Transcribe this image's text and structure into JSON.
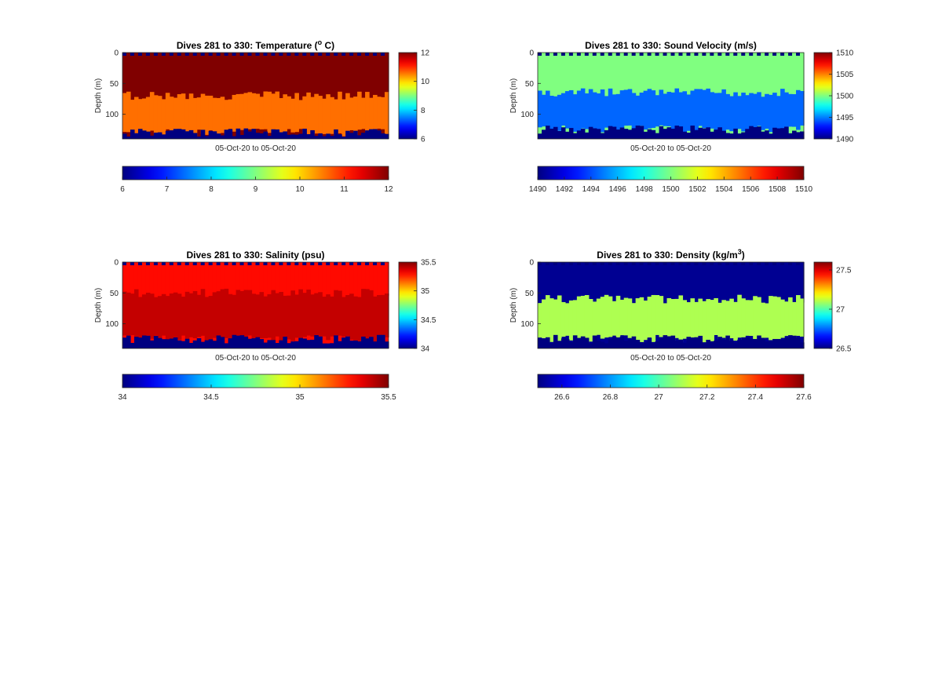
{
  "chart_data": [
    {
      "type": "heatmap",
      "title": "Dives 281 to 330: Temperature (",
      "title_sup": "o",
      "title_end": " C)",
      "xlabel": "05-Oct-20 to 05-Oct-20",
      "ylabel": "Depth (m)",
      "ylim": [
        0,
        140
      ],
      "yticks": [
        "0",
        "50",
        "100"
      ],
      "clim": [
        6,
        12
      ],
      "colorbar_ticks": [
        "6",
        "8",
        "10",
        "12"
      ],
      "hcolorbar_ticks": [
        "6",
        "7",
        "8",
        "9",
        "10",
        "11",
        "12"
      ],
      "colormap": "jet",
      "layers": [
        {
          "depth_range": [
            0,
            70
          ],
          "value": 12.3
        },
        {
          "depth_range": [
            70,
            130
          ],
          "value": 10.6
        },
        {
          "depth_range": [
            130,
            140
          ],
          "value": 6.0
        }
      ]
    },
    {
      "type": "heatmap",
      "title": "Dives 281 to 330: Sound Velocity (m/s)",
      "xlabel": "05-Oct-20 to 05-Oct-20",
      "ylabel": "Depth (m)",
      "ylim": [
        0,
        140
      ],
      "yticks": [
        "0",
        "50",
        "100"
      ],
      "clim": [
        1490,
        1510
      ],
      "colorbar_ticks": [
        "1490",
        "1495",
        "1500",
        "1505",
        "1510"
      ],
      "hcolorbar_ticks": [
        "1490",
        "1492",
        "1494",
        "1496",
        "1498",
        "1500",
        "1502",
        "1504",
        "1506",
        "1508",
        "1510"
      ],
      "colormap": "jet",
      "layers": [
        {
          "depth_range": [
            0,
            65
          ],
          "value": 1500
        },
        {
          "depth_range": [
            65,
            125
          ],
          "value": 1494.5
        },
        {
          "depth_range": [
            125,
            140
          ],
          "value": 1490
        }
      ]
    },
    {
      "type": "heatmap",
      "title": "Dives 281 to 330: Salinity (psu)",
      "xlabel": "05-Oct-20 to 05-Oct-20",
      "ylabel": "Depth (m)",
      "ylim": [
        0,
        140
      ],
      "yticks": [
        "0",
        "50",
        "100"
      ],
      "clim": [
        34,
        35.5
      ],
      "colorbar_ticks": [
        "34",
        "34.5",
        "35",
        "35.5"
      ],
      "hcolorbar_ticks": [
        "34",
        "34.5",
        "35",
        "35.5"
      ],
      "colormap": "jet",
      "layers": [
        {
          "depth_range": [
            0,
            50
          ],
          "value": 35.3
        },
        {
          "depth_range": [
            50,
            125
          ],
          "value": 35.4
        },
        {
          "depth_range": [
            125,
            140
          ],
          "value": 34.0
        }
      ]
    },
    {
      "type": "heatmap",
      "title": "Dives 281 to 330: Density (kg/m",
      "title_sup": "3",
      "title_end": ")",
      "xlabel": "05-Oct-20 to 05-Oct-20",
      "ylabel": "Depth (m)",
      "ylim": [
        0,
        140
      ],
      "yticks": [
        "0",
        "50",
        "100"
      ],
      "clim": [
        26.5,
        27.6
      ],
      "colorbar_ticks": [
        "26.5",
        "27",
        "27.5"
      ],
      "hcolorbar_ticks": [
        "26.6",
        "26.8",
        "27",
        "27.2",
        "27.4",
        "27.6"
      ],
      "colormap": "jet",
      "layers": [
        {
          "depth_range": [
            0,
            60
          ],
          "value": 26.52
        },
        {
          "depth_range": [
            60,
            125
          ],
          "value": 27.1
        },
        {
          "depth_range": [
            125,
            140
          ],
          "value": 26.5
        }
      ]
    }
  ]
}
